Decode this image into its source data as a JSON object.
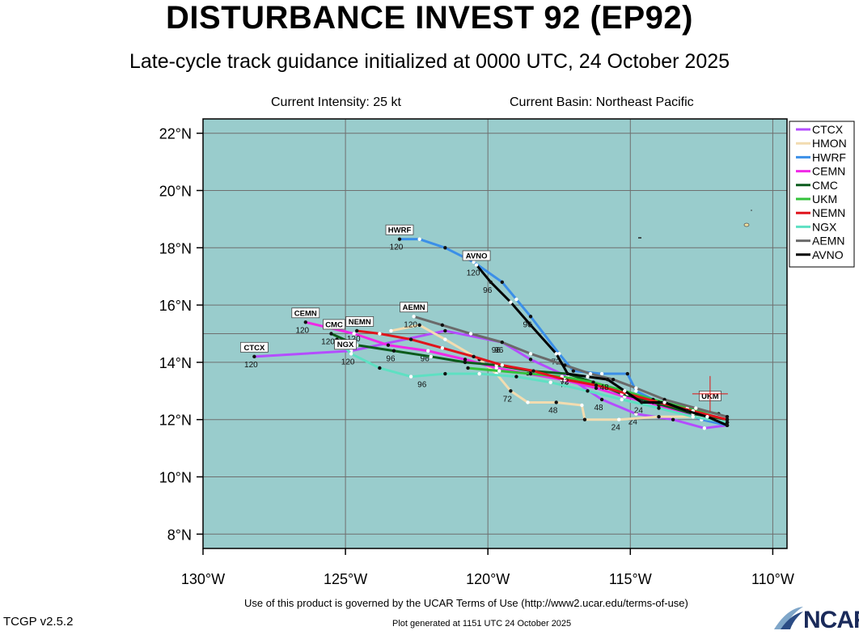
{
  "header": {
    "title": "DISTURBANCE INVEST 92 (EP92)",
    "subtitle": "Late-cycle track guidance initialized at 0000 UTC, 24 October 2025",
    "intensity": "Current Intensity: 25 kt",
    "basin": "Current Basin: Northeast Pacific"
  },
  "footer": {
    "terms": "Use of this product is governed by the UCAR Terms of Use (http://www2.ucar.edu/terms-of-use)",
    "generated": "Plot generated at 1151 UTC   24 October 2025",
    "version": "TCGP v2.5.2",
    "logo": "NCAR"
  },
  "colors": {
    "ocean": "#99cccc",
    "grid": "#6f6f6f"
  },
  "chart_data": {
    "type": "line",
    "xlim": [
      -130,
      -109.5
    ],
    "ylim": [
      7.5,
      22.5
    ],
    "x_ticks": [
      -130,
      -125,
      -120,
      -115,
      -110
    ],
    "x_tick_labels": [
      "130°W",
      "125°W",
      "120°W",
      "115°W",
      "110°W"
    ],
    "y_ticks": [
      8,
      10,
      12,
      14,
      16,
      18,
      20,
      22
    ],
    "y_tick_labels": [
      "8°N",
      "10°N",
      "12°N",
      "14°N",
      "16°N",
      "18°N",
      "20°N",
      "22°N"
    ],
    "grid": true,
    "legend_position": "top-right",
    "series": [
      {
        "name": "CTCX",
        "color": "#b44dff",
        "lon": [
          -111.6,
          -112.4,
          -113.5,
          -114.8,
          -116.0,
          -117.2,
          -118.5,
          -119.5,
          -121.5,
          -124.8,
          -128.2
        ],
        "lat": [
          11.8,
          11.7,
          12.0,
          12.2,
          12.7,
          13.5,
          14.1,
          14.7,
          15.1,
          14.4,
          14.2
        ],
        "labels": [
          [
            "24",
            -114.8,
            12.2
          ],
          [
            "48",
            -116.0,
            12.7
          ],
          [
            "72",
            -117.2,
            13.5
          ],
          [
            "96",
            -119.5,
            14.7
          ],
          [
            "120",
            -128.2,
            14.2
          ]
        ],
        "tag": "CTCX",
        "tag_pos": [
          -128.2,
          14.3
        ]
      },
      {
        "name": "HMON",
        "color": "#f2dcb0",
        "lon": [
          -111.6,
          -112.6,
          -114.0,
          -115.4,
          -116.6,
          -116.7,
          -117.6,
          -118.6,
          -119.2,
          -119.7,
          -120.3,
          -121.5,
          -122.4,
          -123.4
        ],
        "lat": [
          11.9,
          12.1,
          12.1,
          12.0,
          12.0,
          12.5,
          12.6,
          12.6,
          13.0,
          13.6,
          14.1,
          14.8,
          15.3,
          15.1
        ],
        "labels": [
          [
            "24",
            -115.4,
            12.0
          ],
          [
            "48",
            -117.6,
            12.6
          ],
          [
            "72",
            -119.2,
            13.0
          ]
        ]
      },
      {
        "name": "HWRF",
        "color": "#3b8fe8",
        "lon": [
          -111.6,
          -112.5,
          -113.8,
          -114.8,
          -115.1,
          -116.0,
          -117.0,
          -117.5,
          -118.5,
          -119.0,
          -119.5,
          -120.5,
          -121.5,
          -122.4,
          -123.1
        ],
        "lat": [
          11.8,
          12.0,
          12.5,
          13.0,
          13.6,
          13.6,
          13.7,
          14.3,
          15.6,
          16.2,
          16.8,
          17.5,
          18.0,
          18.3,
          18.3
        ],
        "labels": [
          [
            "72",
            -117.5,
            14.3
          ],
          [
            "96",
            -118.5,
            15.6
          ],
          [
            "120",
            -123.1,
            18.3
          ]
        ],
        "tag": "HWRF",
        "tag_pos": [
          -123.1,
          18.4
        ]
      },
      {
        "name": "CEMN",
        "color": "#f028e6",
        "lon": [
          -111.6,
          -112.8,
          -114.0,
          -115.2,
          -116.2,
          -117.4,
          -118.6,
          -119.7,
          -120.8,
          -122.1,
          -123.5,
          -124.7,
          -126.4
        ],
        "lat": [
          11.9,
          12.1,
          12.5,
          12.8,
          13.1,
          13.4,
          13.6,
          13.8,
          14.1,
          14.4,
          14.6,
          15.0,
          15.4
        ],
        "labels": [
          [
            "96",
            -122.1,
            14.4
          ],
          [
            "120",
            -126.4,
            15.4
          ]
        ],
        "tag": "CEMN",
        "tag_pos": [
          -126.4,
          15.5
        ]
      },
      {
        "name": "CMC",
        "color": "#0b5b1c",
        "lon": [
          -111.6,
          -112.8,
          -114.2,
          -115.3,
          -116.3,
          -117.2,
          -118.5,
          -119.7,
          -120.8,
          -122.0,
          -123.3,
          -124.6,
          -125.5
        ],
        "lat": [
          12.0,
          12.2,
          12.6,
          12.9,
          13.3,
          13.6,
          13.7,
          13.9,
          14.0,
          14.2,
          14.4,
          14.6,
          15.0
        ],
        "labels": [
          [
            "96",
            -123.3,
            14.4
          ],
          [
            "120",
            -125.5,
            15.0
          ]
        ],
        "tag": "CMC",
        "tag_pos": [
          -125.4,
          15.1
        ]
      },
      {
        "name": "UKM",
        "color": "#33c23a",
        "lon": [
          -111.9,
          -113.0,
          -114.2,
          -115.2,
          -116.3,
          -117.4,
          -118.5,
          -119.6,
          -120.7
        ],
        "lat": [
          12.2,
          12.4,
          12.7,
          13.0,
          13.3,
          13.5,
          13.6,
          13.7,
          13.8
        ],
        "labels": [],
        "tag": "UKM",
        "tag_pos": [
          -112.2,
          12.6
        ]
      },
      {
        "name": "NEMN",
        "color": "#e0141c",
        "lon": [
          -111.6,
          -112.8,
          -114.0,
          -115.1,
          -116.2,
          -117.3,
          -118.4,
          -119.5,
          -120.5,
          -121.6,
          -122.7,
          -123.8,
          -124.6
        ],
        "lat": [
          12.0,
          12.3,
          12.6,
          12.9,
          13.2,
          13.4,
          13.7,
          13.9,
          14.2,
          14.5,
          14.8,
          15.0,
          15.1
        ],
        "labels": [
          [
            "120",
            -124.6,
            15.1
          ]
        ],
        "tag": "NEMN",
        "tag_pos": [
          -124.5,
          15.2
        ]
      },
      {
        "name": "NGX",
        "color": "#5ee0c2",
        "lon": [
          -111.6,
          -112.8,
          -114.0,
          -115.3,
          -116.5,
          -117.8,
          -119.0,
          -120.3,
          -121.5,
          -122.7,
          -123.8,
          -124.8,
          -125.3
        ],
        "lat": [
          11.9,
          12.1,
          12.4,
          12.7,
          13.0,
          13.3,
          13.5,
          13.6,
          13.6,
          13.5,
          13.8,
          14.3,
          14.8
        ],
        "labels": [
          [
            "96",
            -122.2,
            13.5
          ],
          [
            "120",
            -124.8,
            14.3
          ]
        ],
        "tag": "NGX",
        "tag_pos": [
          -125.0,
          14.4
        ]
      },
      {
        "name": "AEMN",
        "color": "#6a6a6a",
        "lon": [
          -111.6,
          -112.7,
          -113.8,
          -114.8,
          -115.6,
          -116.4,
          -117.3,
          -118.5,
          -119.5,
          -120.6,
          -121.6,
          -122.6
        ],
        "lat": [
          12.1,
          12.4,
          12.7,
          13.1,
          13.4,
          13.6,
          13.9,
          14.3,
          14.7,
          15.0,
          15.3,
          15.6
        ],
        "labels": [
          [
            "96",
            -119.6,
            14.7
          ],
          [
            "120",
            -122.6,
            15.6
          ]
        ],
        "tag": "AEMN",
        "tag_pos": [
          -122.6,
          15.7
        ]
      },
      {
        "name": "AVNO",
        "color": "#000000",
        "lon": [
          -111.6,
          -112.3,
          -113.0,
          -113.8,
          -114.6,
          -115.2,
          -115.8,
          -116.5,
          -117.2,
          -117.6,
          -118.5,
          -119.2,
          -119.9,
          -120.4
        ],
        "lat": [
          11.8,
          12.1,
          12.3,
          12.6,
          12.6,
          13.0,
          13.4,
          13.5,
          13.6,
          14.3,
          15.3,
          16.1,
          16.8,
          17.4
        ],
        "labels": [
          [
            "24",
            -114.6,
            12.6
          ],
          [
            "48",
            -115.8,
            13.4
          ],
          [
            "72",
            -117.2,
            13.6
          ],
          [
            "96",
            -119.9,
            16.8
          ],
          [
            "120",
            -120.4,
            17.4
          ]
        ],
        "tag": "AVNO",
        "tag_pos": [
          -120.4,
          17.5
        ]
      }
    ],
    "current_position": [
      -112.2,
      12.9
    ]
  }
}
